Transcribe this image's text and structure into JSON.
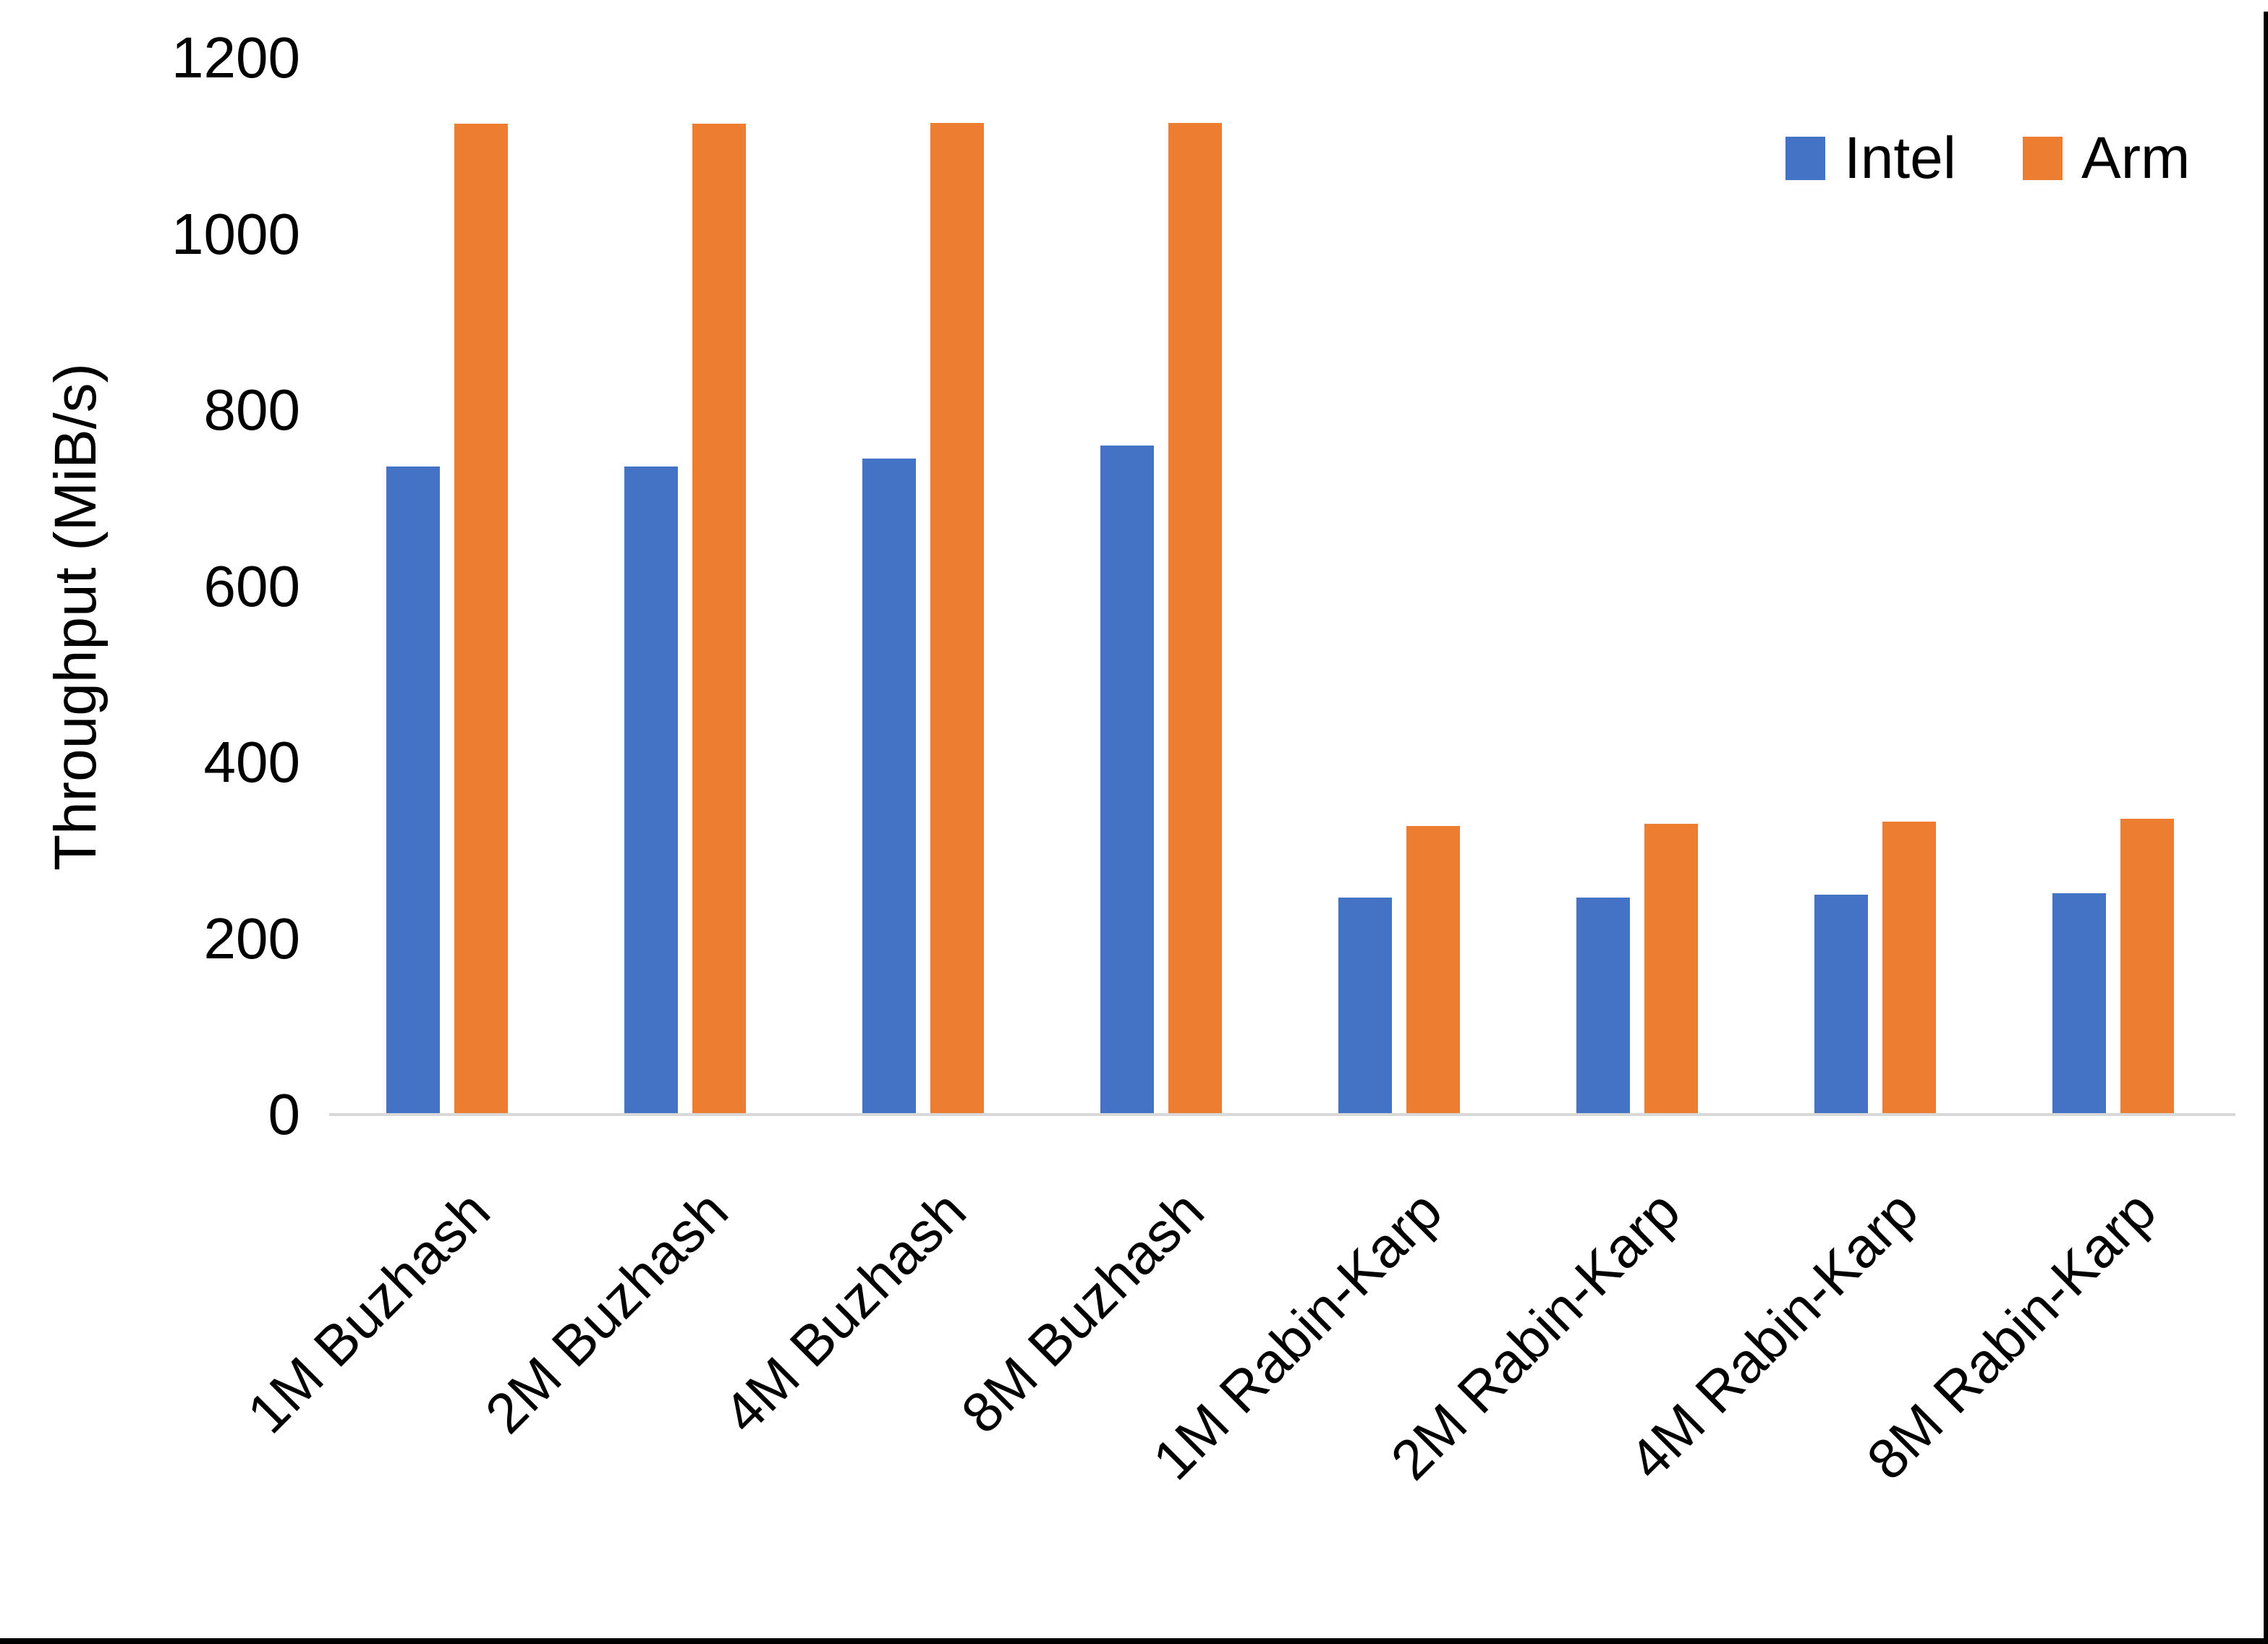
{
  "chart_data": {
    "type": "bar",
    "title": "",
    "xlabel": "",
    "ylabel": "Throughput (MiB/s)",
    "ylim": [
      0,
      1200
    ],
    "grid": false,
    "legend_position": "top-right",
    "categories": [
      "1M Buzhash",
      "2M Buzhash",
      "4M Buzhash",
      "8M Buzhash",
      "1M Rabin-Karp",
      "2M Rabin-Karp",
      "4M Rabin-Karp",
      "8M Rabin-Karp"
    ],
    "series": [
      {
        "name": "Intel",
        "color": "#4472C4",
        "values": [
          736,
          736,
          745,
          760,
          246,
          246,
          250,
          251
        ]
      },
      {
        "name": "Arm",
        "color": "#ED7D31",
        "values": [
          1125,
          1125,
          1126,
          1126,
          328,
          330,
          333,
          336
        ]
      }
    ]
  },
  "y_axis": {
    "title": "Throughput (MiB/s)",
    "ticks": [
      1200,
      1000,
      800,
      600,
      400,
      200,
      0
    ]
  },
  "legend": [
    {
      "label": "Intel",
      "color": "#4472C4"
    },
    {
      "label": "Arm",
      "color": "#ED7D31"
    }
  ],
  "axis": {
    "line_color": "#d9d9d9"
  },
  "border_color": "#000000"
}
